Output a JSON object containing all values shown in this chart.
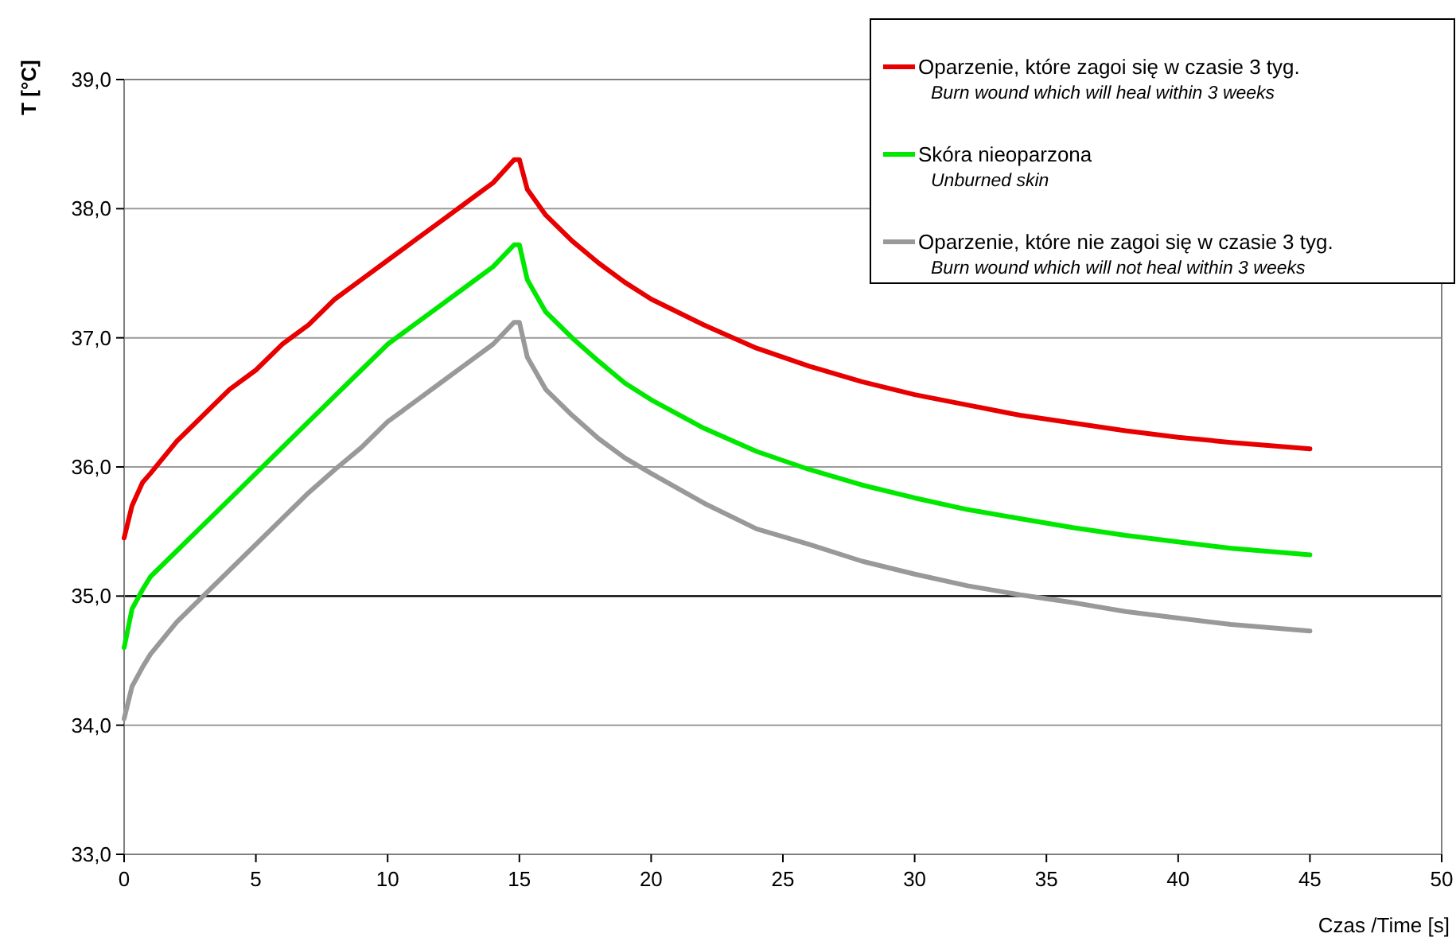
{
  "chart_data": {
    "type": "line",
    "xlabel": "Czas /Time [s]",
    "ylabel": "T [°C]",
    "x": [
      0,
      0.3,
      0.7,
      1,
      2,
      3,
      4,
      5,
      6,
      7,
      8,
      9,
      10,
      11,
      12,
      13,
      14,
      14.8,
      15,
      15.3,
      16,
      17,
      18,
      19,
      20,
      22,
      24,
      26,
      28,
      30,
      32,
      34,
      36,
      38,
      40,
      42,
      45
    ],
    "series": [
      {
        "name": "Oparzenie, które zagoi się w czasie 3 tyg.\nBurn wound which will heal within 3 weeks",
        "color": "#e80000",
        "values": [
          35.45,
          35.7,
          35.88,
          35.95,
          36.2,
          36.4,
          36.6,
          36.75,
          36.95,
          37.1,
          37.3,
          37.45,
          37.6,
          37.75,
          37.9,
          38.05,
          38.2,
          38.38,
          38.38,
          38.15,
          37.95,
          37.75,
          37.58,
          37.43,
          37.3,
          37.1,
          36.92,
          36.78,
          36.66,
          36.56,
          36.48,
          36.4,
          36.34,
          36.28,
          36.23,
          36.19,
          36.14
        ]
      },
      {
        "name": "Skóra nieoparzona\nUnburned skin",
        "color": "#00e800",
        "values": [
          34.6,
          34.9,
          35.05,
          35.15,
          35.35,
          35.55,
          35.75,
          35.95,
          36.15,
          36.35,
          36.55,
          36.75,
          36.95,
          37.1,
          37.25,
          37.4,
          37.55,
          37.72,
          37.72,
          37.45,
          37.2,
          37.0,
          36.82,
          36.65,
          36.52,
          36.3,
          36.12,
          35.98,
          35.86,
          35.76,
          35.67,
          35.6,
          35.53,
          35.47,
          35.42,
          35.37,
          35.32
        ]
      },
      {
        "name": "Oparzenie, które nie zagoi się w czasie 3 tyg.\nBurn wound which will not heal within 3 weeks",
        "color": "#999999",
        "values": [
          34.05,
          34.3,
          34.45,
          34.55,
          34.8,
          35.0,
          35.2,
          35.4,
          35.6,
          35.8,
          35.98,
          36.15,
          36.35,
          36.5,
          36.65,
          36.8,
          36.95,
          37.12,
          37.12,
          36.85,
          36.6,
          36.4,
          36.22,
          36.07,
          35.95,
          35.72,
          35.52,
          35.4,
          35.27,
          35.17,
          35.08,
          35.01,
          34.95,
          34.88,
          34.83,
          34.78,
          34.73
        ]
      }
    ],
    "xlim": [
      0,
      50
    ],
    "xticks": [
      0,
      5,
      10,
      15,
      20,
      25,
      30,
      35,
      40,
      45,
      50
    ],
    "ylim": [
      33,
      39
    ],
    "yticks": [
      {
        "value": 33,
        "label": "33,0"
      },
      {
        "value": 34,
        "label": "34,0"
      },
      {
        "value": 35,
        "label": "35,0"
      },
      {
        "value": 36,
        "label": "36,0"
      },
      {
        "value": 37,
        "label": "37,0"
      },
      {
        "value": 38,
        "label": "38,0"
      },
      {
        "value": 39,
        "label": "39,0"
      }
    ],
    "ref_lines": [
      {
        "axis": "y",
        "value": 35,
        "color": "#000000"
      }
    ],
    "grid": "y",
    "legend": "top right",
    "marker": "none",
    "line_style": "solid"
  }
}
